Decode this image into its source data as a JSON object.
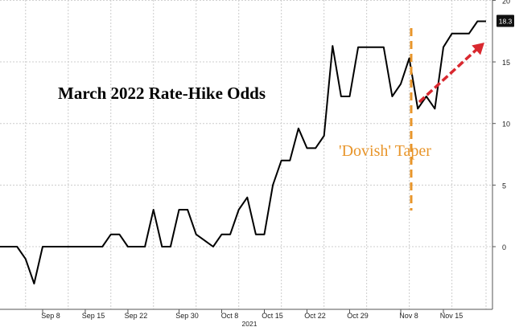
{
  "chart_data": {
    "type": "line",
    "title": "March 2022 Rate-Hike Odds",
    "xlabel": "",
    "ylabel": "",
    "x_tick_labels": [
      "Sep 8",
      "Sep 15",
      "Sep 22",
      "Sep 30",
      "Oct 8",
      "Oct 15",
      "Oct 22",
      "Oct 29",
      "Nov 8",
      "Nov 15"
    ],
    "x_year_label": "2021",
    "y_ticks": [
      0,
      5,
      10,
      15,
      20
    ],
    "ylim": [
      -5,
      20
    ],
    "grid": true,
    "last_value_label": "18.3",
    "annotations": [
      {
        "text": "'Dovish' Taper",
        "color": "#e8952a"
      }
    ],
    "series": [
      {
        "color": "#000000",
        "values": [
          0,
          0,
          0,
          -1,
          -3,
          0,
          0,
          0,
          0,
          0,
          0,
          0,
          0,
          1,
          1,
          0,
          0,
          0,
          3,
          0,
          0,
          3,
          3,
          1,
          0.5,
          0,
          1,
          1,
          3,
          4,
          1,
          1,
          5,
          7,
          7,
          9.6,
          8,
          8,
          9,
          16.3,
          12.2,
          12.2,
          16.2,
          16.2,
          16.2,
          16.2,
          12.2,
          13.2,
          15.3,
          11.2,
          12.2,
          11.2,
          16.2,
          17.3,
          17.3,
          17.3,
          18.3,
          18.3
        ]
      }
    ],
    "colors": {
      "dovish_line": "#e8952a",
      "trend_arrow": "#d9282f",
      "grid": "#cccccc"
    }
  }
}
